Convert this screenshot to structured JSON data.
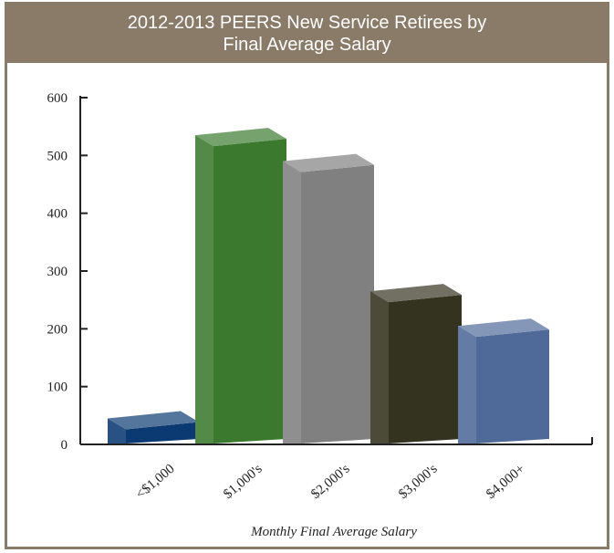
{
  "chart_data": {
    "type": "bar",
    "title_line1": "2012-2013 PEERS New Service Retirees by",
    "title_line2": "Final Average Salary",
    "xlabel": "Monthly Final Average Salary",
    "ylabel": "",
    "ylim": [
      0,
      600
    ],
    "yticks": [
      "0",
      "100",
      "200",
      "300",
      "400",
      "500",
      "600"
    ],
    "categories": [
      "<$1,000",
      "$1,000's",
      "$2,000's",
      "$3,000's",
      "$4,000+"
    ],
    "values": [
      45,
      535,
      490,
      265,
      205
    ],
    "colors": [
      "#0b3a72",
      "#3b7a2e",
      "#808080",
      "#34331f",
      "#4f6a99"
    ],
    "grid": false,
    "legend": "none"
  }
}
